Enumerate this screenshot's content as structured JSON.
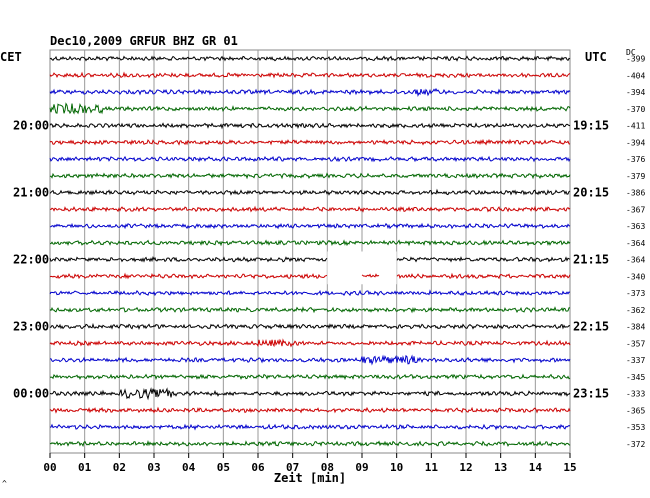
{
  "header": {
    "title": "Dec10,2009   GRFUR BHZ GR 01",
    "left_zone": "CET",
    "right_zone": "UTC",
    "dc_label": "DC"
  },
  "footer": {
    "xlabel": "Zeit [min]",
    "corner_mark": "^"
  },
  "chart_data": {
    "type": "line",
    "title": "Dec10,2009   GRFUR BHZ GR 01",
    "xlabel": "Zeit [min]",
    "ylabel": "",
    "xlim": [
      0,
      15
    ],
    "x_ticks": [
      "00",
      "01",
      "02",
      "03",
      "04",
      "05",
      "06",
      "07",
      "08",
      "09",
      "10",
      "11",
      "12",
      "13",
      "14",
      "15"
    ],
    "grid": true,
    "trace_colors": [
      "#000000",
      "#cc0000",
      "#0000cc",
      "#006600"
    ],
    "left_time_labels": [
      {
        "trace": 4,
        "label": "20:00"
      },
      {
        "trace": 8,
        "label": "21:00"
      },
      {
        "trace": 12,
        "label": "22:00"
      },
      {
        "trace": 16,
        "label": "23:00"
      },
      {
        "trace": 20,
        "label": "00:00"
      }
    ],
    "right_time_labels": [
      {
        "trace": 4,
        "label": "19:15"
      },
      {
        "trace": 8,
        "label": "20:15"
      },
      {
        "trace": 12,
        "label": "21:15"
      },
      {
        "trace": 16,
        "label": "22:15"
      },
      {
        "trace": 20,
        "label": "23:15"
      }
    ],
    "dc_offsets": [
      -399,
      -404,
      -394,
      -370,
      -411,
      -394,
      -376,
      -379,
      -386,
      -367,
      -363,
      -364,
      -364,
      -340,
      -373,
      -362,
      -384,
      -357,
      -337,
      -345,
      -333,
      -365,
      -353,
      -372
    ],
    "gap": {
      "traces": [
        12,
        13
      ],
      "from_min": 8.0,
      "to_min": 10.0,
      "note_trace": 13,
      "note_from": 9.0,
      "note_to": 9.5
    },
    "events": [
      {
        "trace": 3,
        "from_min": 0.0,
        "to_min": 1.5,
        "amp": 3.0
      },
      {
        "trace": 2,
        "from_min": 10.5,
        "to_min": 11.2,
        "amp": 2.0
      },
      {
        "trace": 17,
        "from_min": 6.0,
        "to_min": 7.0,
        "amp": 2.2
      },
      {
        "trace": 18,
        "from_min": 9.0,
        "to_min": 10.6,
        "amp": 2.5
      },
      {
        "trace": 20,
        "from_min": 2.0,
        "to_min": 3.5,
        "amp": 2.8
      }
    ]
  }
}
